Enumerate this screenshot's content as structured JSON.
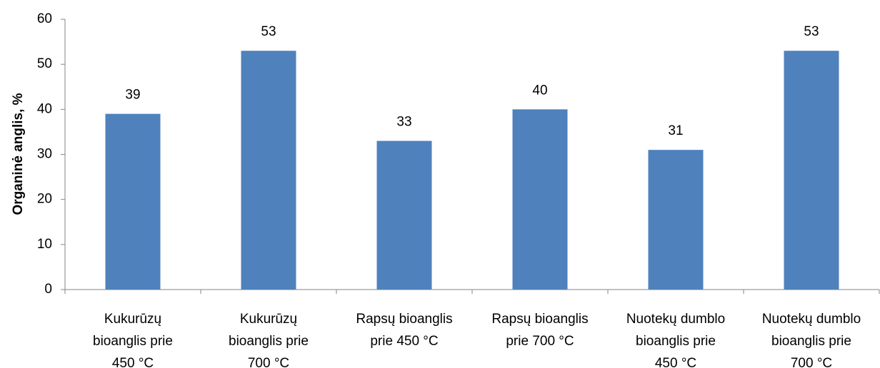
{
  "chart_data": {
    "type": "bar",
    "title": "",
    "xlabel": "",
    "ylabel": "Organinė anglis, %",
    "ylim": [
      0,
      60
    ],
    "yticks": [
      0,
      10,
      20,
      30,
      40,
      50,
      60
    ],
    "grid": false,
    "categories": [
      [
        "Kukurūzų",
        "bioanglis prie",
        "450 °C"
      ],
      [
        "Kukurūzų",
        "bioanglis prie",
        "700 °C"
      ],
      [
        "Rapsų bioanglis",
        "prie 450 °C"
      ],
      [
        "Rapsų bioanglis",
        "prie 700 °C"
      ],
      [
        "Nuotekų dumblo",
        "bioanglis prie",
        "450 °C"
      ],
      [
        "Nuotekų dumblo",
        "bioanglis prie",
        "700 °C"
      ]
    ],
    "values": [
      39,
      53,
      33,
      40,
      31,
      53
    ],
    "data_labels": [
      "39",
      "53",
      "33",
      "40",
      "31",
      "53"
    ],
    "bar_color": "#4f81bd",
    "axis_color": "#868686"
  }
}
